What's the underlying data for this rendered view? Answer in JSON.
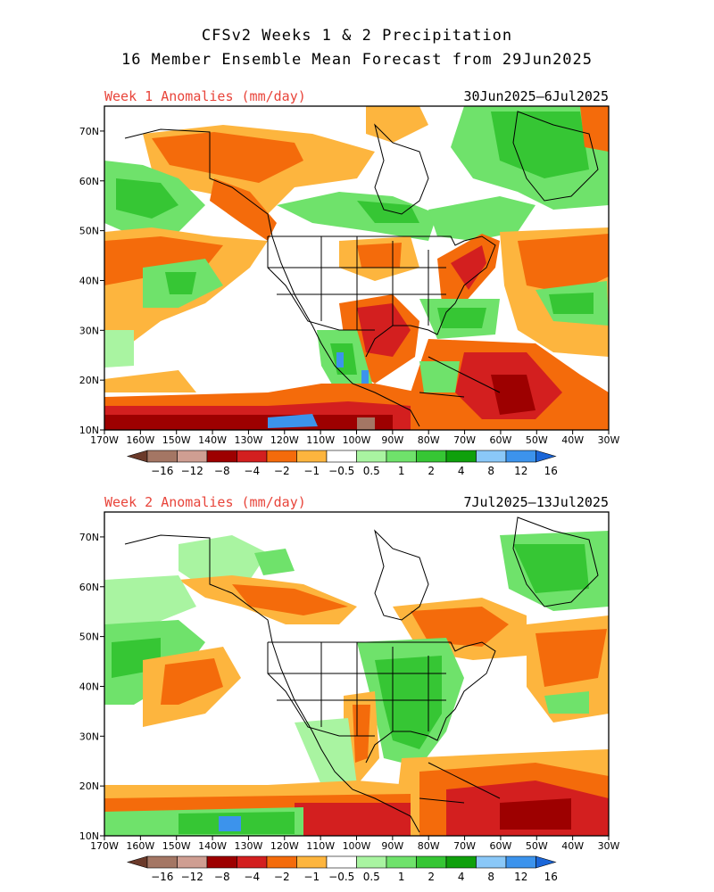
{
  "title": {
    "line1": "CFSv2 Weeks 1 & 2 Precipitation",
    "line2": "16 Member Ensemble Mean Forecast from 29Jun2025"
  },
  "panels": [
    {
      "label": "Week 1 Anomalies (mm/day)",
      "dates": "30Jun2025–6Jul2025",
      "regions": [
        {
          "name": "alaska-yukon",
          "color": "#ff7f00"
        },
        {
          "name": "bering-sea",
          "color": "#ff7f00"
        },
        {
          "name": "alaska-gulf-coast",
          "color": "#35c935"
        },
        {
          "name": "gulf-of-alaska",
          "color": "#35c935"
        },
        {
          "name": "greenland",
          "color": "#35c935"
        },
        {
          "name": "hudson-bay",
          "color": "#35c935"
        },
        {
          "name": "labrador",
          "color": "#35c935"
        },
        {
          "name": "baffin",
          "color": "#ff7f00"
        },
        {
          "name": "ne-pacific",
          "color": "#ff7f00"
        },
        {
          "name": "ne-pacific-green",
          "color": "#35c935"
        },
        {
          "name": "north-atlantic",
          "color": "#ff7f00"
        },
        {
          "name": "western-atlantic-green",
          "color": "#35c935"
        },
        {
          "name": "texas-gulf",
          "color": "#e11f1f"
        },
        {
          "name": "great-lakes",
          "color": "#ff7f00"
        },
        {
          "name": "new-england",
          "color": "#e11f1f"
        },
        {
          "name": "southeast-us",
          "color": "#35c935"
        },
        {
          "name": "mexico-west",
          "color": "#35c935"
        },
        {
          "name": "caribbean",
          "color": "#e11f1f"
        },
        {
          "name": "tropical-pacific-band",
          "color": "#b80000"
        },
        {
          "name": "tropical-pacific-wet",
          "color": "#3c93ec"
        }
      ]
    },
    {
      "label": "Week 2 Anomalies (mm/day)",
      "dates": "7Jul2025–13Jul2025",
      "regions": [
        {
          "name": "western-canada",
          "color": "#ff7f00"
        },
        {
          "name": "alaska-north",
          "color": "#35c935"
        },
        {
          "name": "greenland",
          "color": "#35c935"
        },
        {
          "name": "eastern-canada",
          "color": "#ff7f00"
        },
        {
          "name": "eastern-us",
          "color": "#35c935"
        },
        {
          "name": "ne-pacific-green",
          "color": "#35c935"
        },
        {
          "name": "ne-pacific-orange",
          "color": "#ff7f00"
        },
        {
          "name": "mid-atlantic",
          "color": "#ff7f00"
        },
        {
          "name": "texas",
          "color": "#e11f1f"
        },
        {
          "name": "mexico",
          "color": "#35c935"
        },
        {
          "name": "caribbean",
          "color": "#e11f1f"
        },
        {
          "name": "tropical-atlantic",
          "color": "#b80000"
        },
        {
          "name": "tropical-pacific-band",
          "color": "#e11f1f"
        },
        {
          "name": "tropical-pacific-green",
          "color": "#35c935"
        },
        {
          "name": "tropical-pacific-wet",
          "color": "#3c93ec"
        }
      ]
    }
  ],
  "map": {
    "lat_ticks": [
      "70N",
      "60N",
      "50N",
      "40N",
      "30N",
      "20N",
      "10N"
    ],
    "lon_ticks": [
      "170W",
      "160W",
      "150W",
      "140W",
      "130W",
      "120W",
      "110W",
      "100W",
      "90W",
      "80W",
      "70W",
      "60W",
      "50W",
      "40W",
      "30W"
    ],
    "lat_range": [
      10,
      75
    ],
    "lon_range": [
      -170,
      -30
    ]
  },
  "colorbar": {
    "labels": [
      "−16",
      "−12",
      "−8",
      "−4",
      "−2",
      "−1",
      "−0.5",
      "0.5",
      "1",
      "2",
      "4",
      "8",
      "12",
      "16"
    ],
    "colors": [
      "#6b3a2a",
      "#a47664",
      "#cf9e92",
      "#9d0000",
      "#d31f1f",
      "#f46b0b",
      "#fdb53e",
      "#ffffff",
      "#a9f4a1",
      "#6fe26b",
      "#36c634",
      "#0fa00c",
      "#8ac8f8",
      "#3c93ec",
      "#1a66d8"
    ]
  }
}
